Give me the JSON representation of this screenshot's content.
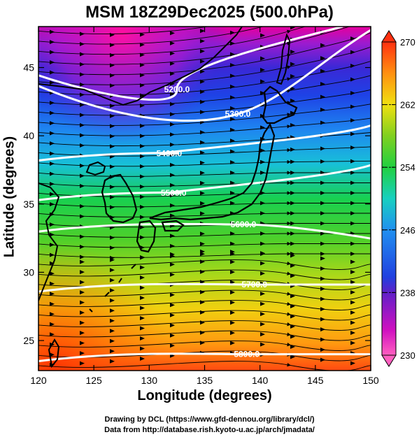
{
  "title": "MSM 18Z29Dec2025 (500.0hPa)",
  "chart_data": {
    "type": "heatmap",
    "title": "MSM 18Z29Dec2025 (500.0hPa)",
    "xlabel": "Longitude (degrees)",
    "ylabel": "Latitude  (degrees)",
    "xlim": [
      120,
      150
    ],
    "ylim": [
      22.8,
      48
    ],
    "x_ticks": [
      "120",
      "125",
      "130",
      "135",
      "140",
      "145",
      "150"
    ],
    "y_ticks": [
      "25",
      "30",
      "35",
      "40",
      "45"
    ],
    "colorbar": {
      "min": 230,
      "max": 270,
      "ticks": [
        "230",
        "238",
        "246",
        "254",
        "262",
        "270"
      ]
    },
    "contours": [
      {
        "label": "5200.0",
        "lon": 132.5,
        "lat": 43.4
      },
      {
        "label": "5300.0",
        "lon": 138.0,
        "lat": 41.6
      },
      {
        "label": "5400.0",
        "lon": 131.8,
        "lat": 38.7
      },
      {
        "label": "5500.0",
        "lon": 132.2,
        "lat": 35.8
      },
      {
        "label": "5600.0",
        "lon": 138.5,
        "lat": 33.5
      },
      {
        "label": "5700.0",
        "lon": 139.5,
        "lat": 29.1
      },
      {
        "label": "5800.0",
        "lon": 138.8,
        "lat": 24.0
      }
    ]
  },
  "credits": {
    "line1": "Drawing by DCL (https://www.gfd-dennou.org/library/dcl/)",
    "line2": "Data from http://database.rish.kyoto-u.ac.jp/arch/jmadata/"
  },
  "colors": {
    "low": "#e0009a",
    "high": "#ff2a00",
    "contour": "#ffffff",
    "coast": "#000000"
  }
}
